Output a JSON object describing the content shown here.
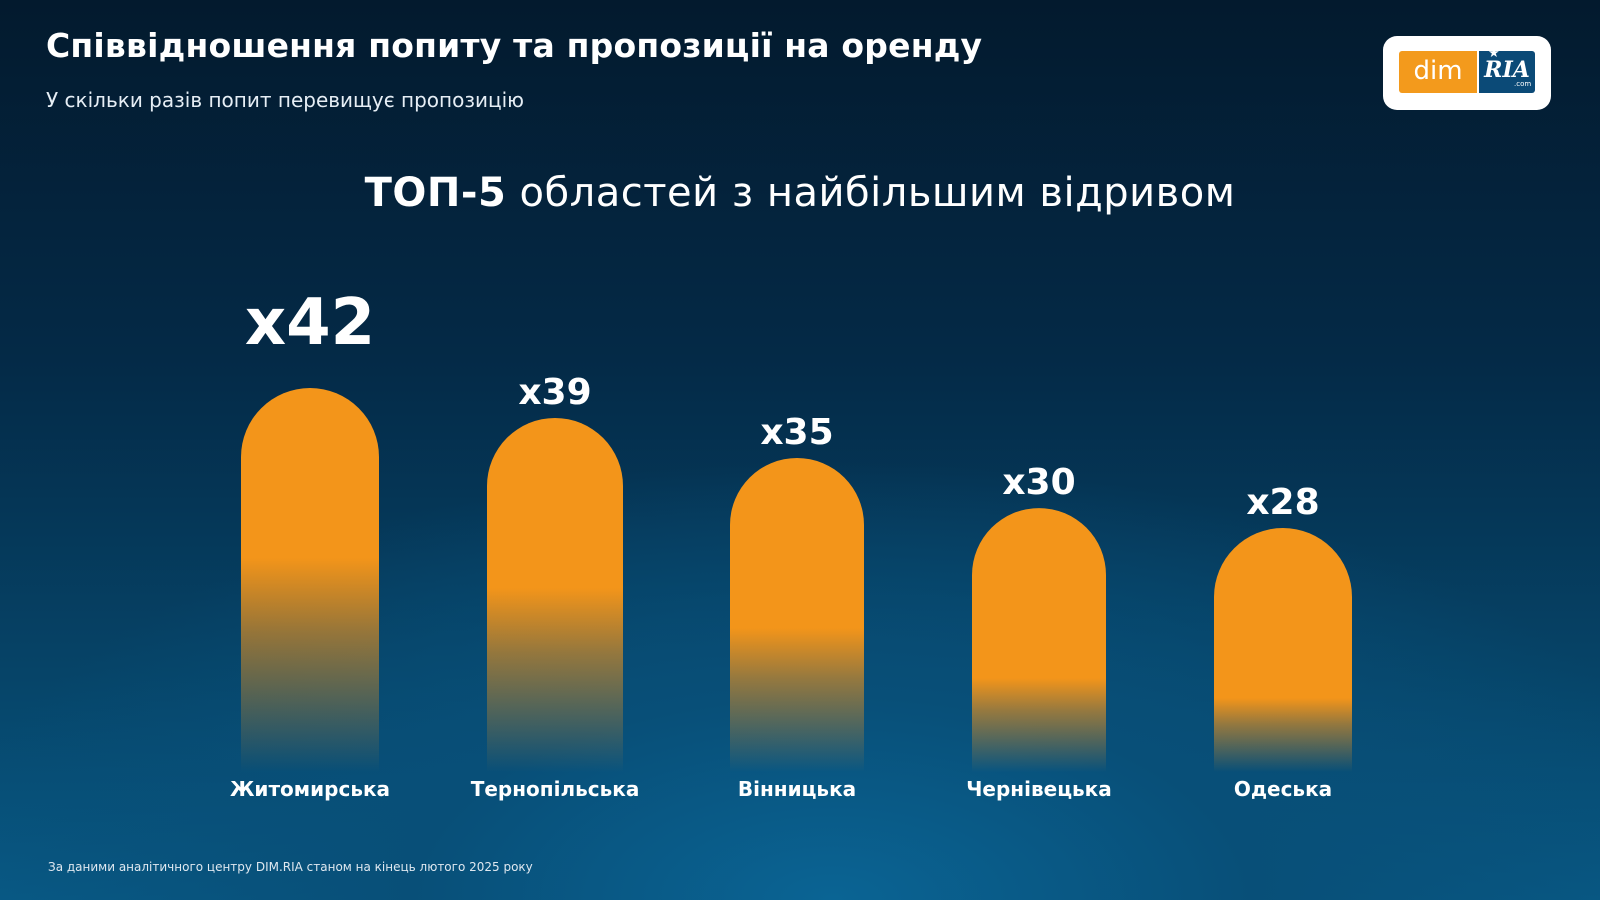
{
  "header": {
    "title": "Співвідношення попиту та пропозиції на оренду",
    "subtitle": "У скільки разів попит перевищує пропозицію"
  },
  "logo": {
    "dim_text": "dim",
    "ria_text": "RIA",
    "com_text": ".com"
  },
  "headline": {
    "bold": "ТОП-5",
    "rest": " областей з найбільшим відривом"
  },
  "chart_data": {
    "type": "bar",
    "categories": [
      "Житомирська",
      "Тернопільська",
      "Вінницька",
      "Чернівецька",
      "Одеська"
    ],
    "values": [
      42,
      39,
      35,
      30,
      28
    ],
    "value_labels": [
      "x42",
      "x39",
      "x35",
      "x30",
      "x28"
    ],
    "title": "ТОП-5 областей з найбільшим відривом",
    "xlabel": "",
    "ylabel": "",
    "bar_color": "#f3951a",
    "grid": false,
    "legend": "none"
  },
  "footnote": "За даними аналітичного центру DIM.RIA станом на кінець лютого 2025 року",
  "colors": {
    "accent": "#f3951a",
    "brand_blue": "#0b4a77",
    "background_dark": "#031a2e"
  }
}
